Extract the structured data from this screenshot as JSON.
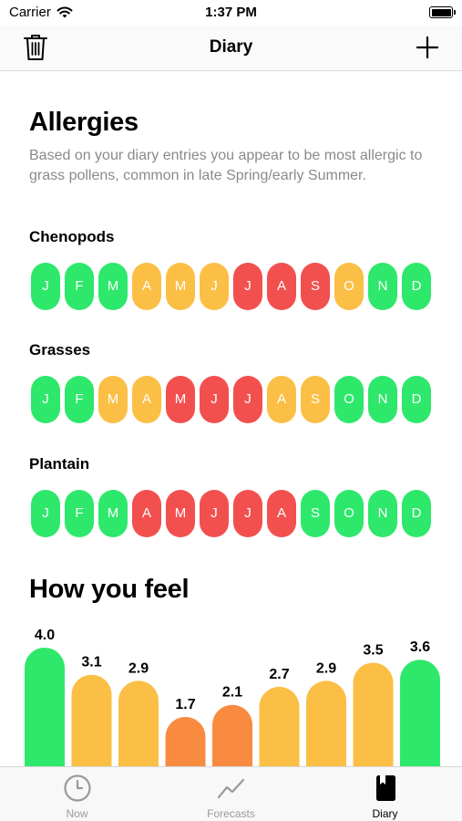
{
  "status_bar": {
    "carrier": "Carrier",
    "time": "1:37 PM"
  },
  "nav": {
    "title": "Diary"
  },
  "allergies": {
    "title": "Allergies",
    "summary": "Based on your diary entries you appear to be most allergic to grass pollens, common in late Spring/early Summer.",
    "rows": [
      {
        "name": "Chenopods",
        "months": [
          {
            "label": "J",
            "level": "low"
          },
          {
            "label": "F",
            "level": "low"
          },
          {
            "label": "M",
            "level": "low"
          },
          {
            "label": "A",
            "level": "medium"
          },
          {
            "label": "M",
            "level": "medium"
          },
          {
            "label": "J",
            "level": "medium"
          },
          {
            "label": "J",
            "level": "high"
          },
          {
            "label": "A",
            "level": "high"
          },
          {
            "label": "S",
            "level": "high"
          },
          {
            "label": "O",
            "level": "medium"
          },
          {
            "label": "N",
            "level": "low"
          },
          {
            "label": "D",
            "level": "low"
          }
        ]
      },
      {
        "name": "Grasses",
        "months": [
          {
            "label": "J",
            "level": "low"
          },
          {
            "label": "F",
            "level": "low"
          },
          {
            "label": "M",
            "level": "medium"
          },
          {
            "label": "A",
            "level": "medium"
          },
          {
            "label": "M",
            "level": "high"
          },
          {
            "label": "J",
            "level": "high"
          },
          {
            "label": "J",
            "level": "high"
          },
          {
            "label": "A",
            "level": "medium"
          },
          {
            "label": "S",
            "level": "medium"
          },
          {
            "label": "O",
            "level": "low"
          },
          {
            "label": "N",
            "level": "low"
          },
          {
            "label": "D",
            "level": "low"
          }
        ]
      },
      {
        "name": "Plantain",
        "months": [
          {
            "label": "J",
            "level": "low"
          },
          {
            "label": "F",
            "level": "low"
          },
          {
            "label": "M",
            "level": "low"
          },
          {
            "label": "A",
            "level": "high"
          },
          {
            "label": "M",
            "level": "high"
          },
          {
            "label": "J",
            "level": "high"
          },
          {
            "label": "J",
            "level": "high"
          },
          {
            "label": "A",
            "level": "high"
          },
          {
            "label": "S",
            "level": "low"
          },
          {
            "label": "O",
            "level": "low"
          },
          {
            "label": "N",
            "level": "low"
          },
          {
            "label": "D",
            "level": "low"
          }
        ]
      }
    ]
  },
  "level_colors": {
    "low": "#2ee86b",
    "medium": "#fbbf45",
    "high": "#f2504f",
    "lower": "#f98b40"
  },
  "feel": {
    "title": "How you feel",
    "bars": [
      {
        "value": 4.0,
        "label": "4.0",
        "color": "#2ee86b"
      },
      {
        "value": 3.1,
        "label": "3.1",
        "color": "#fbbf45"
      },
      {
        "value": 2.9,
        "label": "2.9",
        "color": "#fbbf45"
      },
      {
        "value": 1.7,
        "label": "1.7",
        "color": "#f98b40"
      },
      {
        "value": 2.1,
        "label": "2.1",
        "color": "#f98b40"
      },
      {
        "value": 2.7,
        "label": "2.7",
        "color": "#fbbf45"
      },
      {
        "value": 2.9,
        "label": "2.9",
        "color": "#fbbf45"
      },
      {
        "value": 3.5,
        "label": "3.5",
        "color": "#fbbf45"
      },
      {
        "value": 3.6,
        "label": "3.6",
        "color": "#2ee86b"
      }
    ]
  },
  "tabs": [
    {
      "label": "Now",
      "icon": "clock-icon",
      "active": false
    },
    {
      "label": "Forecasts",
      "icon": "trend-icon",
      "active": false
    },
    {
      "label": "Diary",
      "icon": "book-icon",
      "active": true
    }
  ]
}
